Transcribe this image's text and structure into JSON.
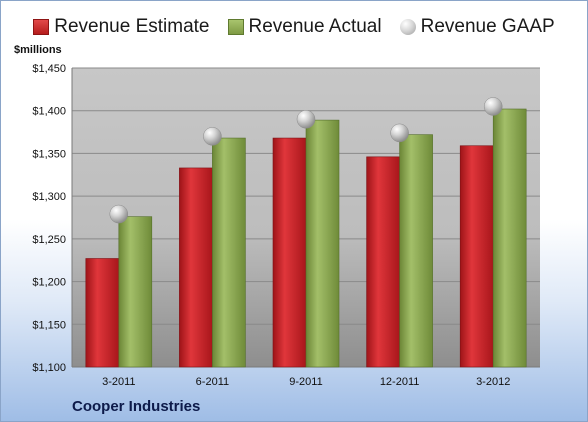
{
  "chart_data": {
    "type": "bar",
    "title": "",
    "ylabel": "$millions",
    "footer": "Cooper Industries",
    "categories": [
      "3-2011",
      "6-2011",
      "9-2011",
      "12-2011",
      "3-2012"
    ],
    "ylim": [
      1100,
      1450
    ],
    "yticks": [
      "$1,100",
      "$1,150",
      "$1,200",
      "$1,250",
      "$1,300",
      "$1,350",
      "$1,400",
      "$1,450"
    ],
    "ytick_values": [
      1100,
      1150,
      1200,
      1250,
      1300,
      1350,
      1400,
      1450
    ],
    "grid": true,
    "legend_position": "top",
    "series": [
      {
        "name": "Revenue Estimate",
        "kind": "bar",
        "color": "#c8202a",
        "values": [
          1227,
          1333,
          1368,
          1346,
          1359
        ]
      },
      {
        "name": "Revenue Actual",
        "kind": "bar",
        "color": "#8aaa4f",
        "values": [
          1276,
          1368,
          1389,
          1372,
          1402
        ]
      },
      {
        "name": "Revenue GAAP",
        "kind": "marker",
        "color": "#bdbdbd",
        "values": [
          1279,
          1370,
          1390,
          1374,
          1405
        ]
      }
    ]
  }
}
